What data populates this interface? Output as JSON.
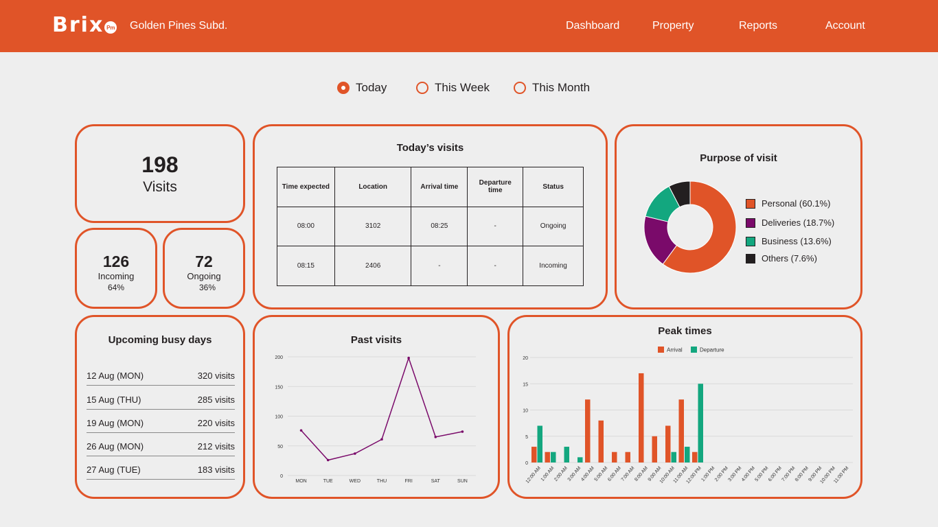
{
  "header": {
    "logo": "Brix",
    "logo_badge": "Pm",
    "subdivision": "Golden Pines Subd.",
    "nav": [
      "Dashboard",
      "Property",
      "Reports",
      "Account"
    ]
  },
  "range_filter": {
    "options": [
      "Today",
      "This Week",
      "This Month"
    ],
    "selected": "Today"
  },
  "visits": {
    "total": "198",
    "total_label": "Visits"
  },
  "incoming": {
    "count": "126",
    "label": "Incoming",
    "percent": "64%"
  },
  "ongoing": {
    "count": "72",
    "label": "Ongoing",
    "percent": "36%"
  },
  "todays_visits": {
    "title": "Today’s visits",
    "columns": [
      "Time expected",
      "Location",
      "Arrival time",
      "Departure time",
      "Status"
    ],
    "rows": [
      [
        "08:00",
        "3102",
        "08:25",
        "-",
        "Ongoing"
      ],
      [
        "08:15",
        "2406",
        "-",
        "-",
        "Incoming"
      ]
    ]
  },
  "busy_days": {
    "title": "Upcoming busy days",
    "items": [
      {
        "day": "12 Aug (MON)",
        "visits": "320 visits"
      },
      {
        "day": "15 Aug (THU)",
        "visits": "285 visits"
      },
      {
        "day": "19 Aug (MON)",
        "visits": "220 visits"
      },
      {
        "day": "26 Aug (MON)",
        "visits": "212 visits"
      },
      {
        "day": "27 Aug (TUE)",
        "visits": "183 visits"
      }
    ]
  },
  "colors": {
    "accent": "#e05428",
    "personal": "#e05428",
    "deliveries": "#7a0a6a",
    "business": "#13a77f",
    "others": "#231f20",
    "line": "#7a0a6a",
    "arrival": "#e05428",
    "departure": "#13a77f"
  },
  "chart_data": [
    {
      "type": "pie",
      "title": "Purpose of visit",
      "labels": [
        "Personal (60.1%)",
        "Deliveries (18.7%)",
        "Business (13.6%)",
        "Others (7.6%)"
      ],
      "values": [
        60.1,
        18.7,
        13.6,
        7.6
      ],
      "legend": "right"
    },
    {
      "type": "line",
      "title": "Past visits",
      "x": [
        "MON",
        "TUE",
        "WED",
        "THU",
        "FRI",
        "SAT",
        "SUN"
      ],
      "series": [
        {
          "values": [
            76,
            26,
            37,
            61,
            198,
            65,
            74
          ]
        }
      ],
      "yticks": [
        "0",
        "50",
        "100",
        "150",
        "200"
      ],
      "ylim": [
        0,
        200
      ],
      "grid": true
    },
    {
      "type": "bar",
      "title": "Peak times",
      "categories": [
        "12:00 AM",
        "1:00 AM",
        "2:00 AM",
        "3:00 AM",
        "4:00 AM",
        "5:00 AM",
        "6:00 AM",
        "7:00 AM",
        "8:00 AM",
        "9:00 AM",
        "10:00 AM",
        "11:00 AM",
        "12:00 PM",
        "1:00 PM",
        "2:00 PM",
        "3:00 PM",
        "4:00 PM",
        "5:00 PM",
        "6:00 PM",
        "7:00 PM",
        "8:00 PM",
        "9:00 PM",
        "10:00 PM",
        "11:00 PM"
      ],
      "series": [
        {
          "name": "Arrival",
          "values": [
            3,
            2,
            0,
            0,
            12,
            8,
            2,
            2,
            17,
            5,
            7,
            12,
            2,
            0,
            0,
            0,
            0,
            0,
            0,
            0,
            0,
            0,
            0,
            0
          ]
        },
        {
          "name": "Departure",
          "values": [
            7,
            2,
            3,
            1,
            0,
            0,
            0,
            0,
            0,
            0,
            2,
            3,
            15,
            0,
            0,
            0,
            0,
            0,
            0,
            0,
            0,
            0,
            0,
            0
          ]
        }
      ],
      "yticks": [
        "0",
        "5",
        "10",
        "15",
        "20"
      ],
      "ylim": [
        0,
        20
      ],
      "legend": "top",
      "grid": true
    }
  ]
}
